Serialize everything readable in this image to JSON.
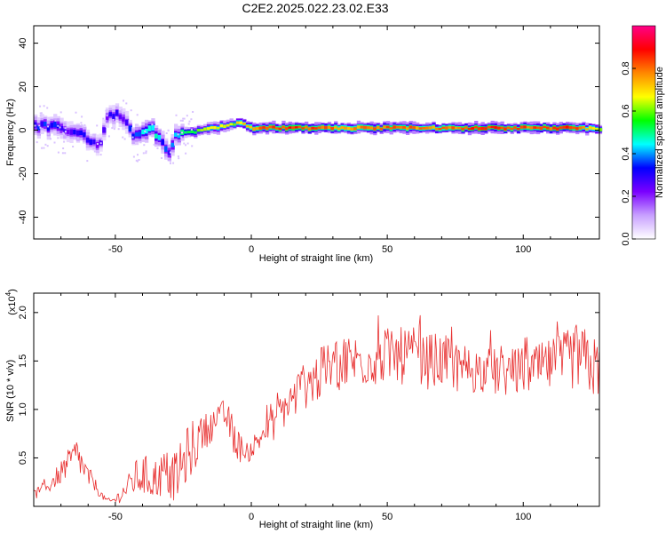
{
  "title": "C2E2.2025.022.23.02.E33",
  "chart_data": [
    {
      "type": "heatmap",
      "name": "spectrogram",
      "xlabel": "Height of straight line (km)",
      "ylabel": "Frequency (Hz)",
      "xlim": [
        -80,
        128
      ],
      "ylim": [
        -50,
        48
      ],
      "xticks": [
        -50,
        0,
        50,
        100
      ],
      "yticks": [
        -40,
        -20,
        0,
        20,
        40
      ],
      "colorbar": {
        "label": "Normalized spectral amplitude",
        "range": [
          0.0,
          1.0
        ],
        "ticks": [
          "0.0",
          "0.2",
          "0.4",
          "0.6",
          "0.8"
        ],
        "colormap": [
          "#ffffff",
          "#c8a0ff",
          "#7a00ff",
          "#0000ff",
          "#00ffff",
          "#00ff00",
          "#ffff00",
          "#ff8800",
          "#ff0000",
          "#ff0088"
        ]
      },
      "ridge": {
        "x": [
          -78,
          -72,
          -68,
          -64,
          -60,
          -56,
          -53,
          -50,
          -47,
          -44,
          -42,
          -40,
          -37,
          -35,
          -33,
          -31,
          -28,
          -25,
          -22,
          -18,
          -14,
          -10,
          -7,
          -4,
          -1,
          3,
          8,
          15,
          25,
          35,
          45,
          55,
          65,
          75,
          85,
          95,
          105,
          115,
          122,
          128
        ],
        "y": [
          2,
          1,
          0,
          -2,
          -4,
          -6,
          8,
          7,
          6,
          -2,
          -3,
          -1,
          0,
          -3,
          -6,
          -10,
          -2,
          -1,
          -1,
          0,
          1,
          2,
          3,
          4,
          1,
          1,
          1,
          1,
          1,
          1,
          1,
          1,
          1,
          1,
          1,
          1,
          1,
          1,
          1,
          0
        ],
        "amplitude": [
          0.35,
          0.4,
          0.3,
          0.35,
          0.3,
          0.25,
          0.3,
          0.35,
          0.3,
          0.35,
          0.45,
          0.5,
          0.55,
          0.45,
          0.4,
          0.35,
          0.45,
          0.55,
          0.6,
          0.7,
          0.75,
          0.75,
          0.7,
          0.8,
          0.85,
          0.9,
          0.9,
          0.95,
          0.9,
          0.85,
          0.9,
          0.9,
          0.85,
          0.9,
          0.95,
          0.9,
          0.9,
          0.95,
          0.85,
          0.7
        ]
      }
    },
    {
      "type": "line",
      "name": "snr",
      "xlabel": "Height of straight line (km)",
      "ylabel": "SNR (10 * v/v)",
      "yscale_label": "(x10",
      "yscale_exp": "4",
      "xlim": [
        -80,
        128
      ],
      "ylim": [
        0,
        2.2
      ],
      "xticks": [
        -50,
        0,
        50,
        100
      ],
      "yticks": [
        0.5,
        1.0,
        1.5,
        2.0
      ],
      "ytick_labels": [
        "0.5",
        "1.0",
        "1.5",
        "2.0"
      ],
      "series": [
        {
          "color": "#e83030",
          "envelope_x": [
            -80,
            -75,
            -70,
            -67,
            -64,
            -62,
            -60,
            -58,
            -56,
            -54,
            -52,
            -50,
            -48,
            -46,
            -44,
            -42,
            -40,
            -38,
            -36,
            -34,
            -32,
            -30,
            -28,
            -26,
            -24,
            -22,
            -20,
            -18,
            -16,
            -14,
            -12,
            -10,
            -8,
            -6,
            -4,
            -2,
            0,
            2,
            4,
            6,
            8,
            10,
            12,
            15,
            18,
            20,
            25,
            30,
            35,
            40,
            45,
            50,
            55,
            60,
            65,
            70,
            75,
            80,
            85,
            90,
            95,
            100,
            105,
            110,
            115,
            120,
            125,
            128
          ],
          "envelope_y": [
            0.12,
            0.2,
            0.35,
            0.45,
            0.55,
            0.4,
            0.3,
            0.25,
            0.15,
            0.08,
            0.05,
            0.07,
            0.12,
            0.18,
            0.25,
            0.3,
            0.32,
            0.3,
            0.28,
            0.3,
            0.35,
            0.32,
            0.3,
            0.38,
            0.5,
            0.6,
            0.65,
            0.75,
            0.8,
            0.85,
            0.9,
            0.95,
            0.85,
            0.7,
            0.6,
            0.55,
            0.6,
            0.65,
            0.75,
            0.8,
            0.85,
            0.95,
            1.0,
            1.1,
            1.2,
            1.25,
            1.35,
            1.45,
            1.5,
            1.5,
            1.52,
            1.55,
            1.55,
            1.55,
            1.5,
            1.5,
            1.45,
            1.42,
            1.4,
            1.38,
            1.38,
            1.4,
            1.42,
            1.45,
            1.5,
            1.55,
            1.45,
            1.4
          ],
          "spread": [
            0.05,
            0.08,
            0.12,
            0.15,
            0.18,
            0.15,
            0.12,
            0.08,
            0.05,
            0.03,
            0.03,
            0.05,
            0.08,
            0.1,
            0.15,
            0.2,
            0.22,
            0.22,
            0.22,
            0.22,
            0.24,
            0.25,
            0.25,
            0.28,
            0.3,
            0.3,
            0.25,
            0.2,
            0.18,
            0.16,
            0.15,
            0.16,
            0.18,
            0.2,
            0.15,
            0.12,
            0.12,
            0.15,
            0.15,
            0.15,
            0.18,
            0.2,
            0.2,
            0.22,
            0.25,
            0.25,
            0.28,
            0.28,
            0.3,
            0.28,
            0.28,
            0.3,
            0.3,
            0.3,
            0.3,
            0.28,
            0.28,
            0.25,
            0.25,
            0.25,
            0.25,
            0.25,
            0.25,
            0.28,
            0.3,
            0.35,
            0.35,
            0.3
          ]
        }
      ]
    }
  ]
}
